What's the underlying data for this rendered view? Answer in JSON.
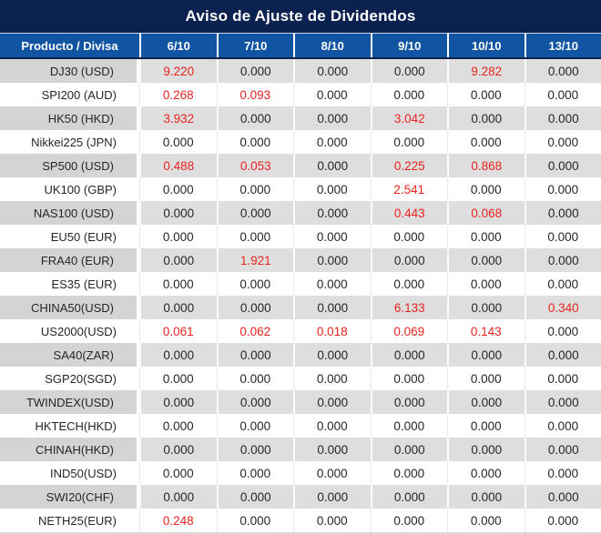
{
  "title": "Aviso de Ajuste de Dividendos",
  "columns": [
    "Producto / Divisa",
    "6/10",
    "7/10",
    "8/10",
    "9/10",
    "10/10",
    "13/10"
  ],
  "value_highlight_rule": "non-zero dividend adjustments are shown in red",
  "colors": {
    "title_bg": "#0b2150",
    "header_bg": "#1054a2",
    "value_red": "#e8241f",
    "row_alt_product_bg": "#d4d4d4",
    "row_alt_data_bg": "#dedede",
    "body_text": "#262626"
  },
  "rows": [
    {
      "product": "DJ30 (USD)",
      "values": [
        "9.220",
        "0.000",
        "0.000",
        "0.000",
        "9.282",
        "0.000"
      ]
    },
    {
      "product": "SPI200 (AUD)",
      "values": [
        "0.268",
        "0.093",
        "0.000",
        "0.000",
        "0.000",
        "0.000"
      ]
    },
    {
      "product": "HK50 (HKD)",
      "values": [
        "3.932",
        "0.000",
        "0.000",
        "3.042",
        "0.000",
        "0.000"
      ]
    },
    {
      "product": "Nikkei225 (JPN)",
      "values": [
        "0.000",
        "0.000",
        "0.000",
        "0.000",
        "0.000",
        "0.000"
      ]
    },
    {
      "product": "SP500 (USD)",
      "values": [
        "0.488",
        "0.053",
        "0.000",
        "0.225",
        "0.868",
        "0.000"
      ]
    },
    {
      "product": "UK100 (GBP)",
      "values": [
        "0.000",
        "0.000",
        "0.000",
        "2.541",
        "0.000",
        "0.000"
      ]
    },
    {
      "product": "NAS100 (USD)",
      "values": [
        "0.000",
        "0.000",
        "0.000",
        "0.443",
        "0.068",
        "0.000"
      ]
    },
    {
      "product": "EU50 (EUR)",
      "values": [
        "0.000",
        "0.000",
        "0.000",
        "0.000",
        "0.000",
        "0.000"
      ]
    },
    {
      "product": "FRA40 (EUR)",
      "values": [
        "0.000",
        "1.921",
        "0.000",
        "0.000",
        "0.000",
        "0.000"
      ]
    },
    {
      "product": "ES35 (EUR)",
      "values": [
        "0.000",
        "0.000",
        "0.000",
        "0.000",
        "0.000",
        "0.000"
      ]
    },
    {
      "product": "CHINA50(USD)",
      "values": [
        "0.000",
        "0.000",
        "0.000",
        "6.133",
        "0.000",
        "0.340"
      ]
    },
    {
      "product": "US2000(USD)",
      "values": [
        "0.061",
        "0.062",
        "0.018",
        "0.069",
        "0.143",
        "0.000"
      ]
    },
    {
      "product": "SA40(ZAR)",
      "values": [
        "0.000",
        "0.000",
        "0.000",
        "0.000",
        "0.000",
        "0.000"
      ]
    },
    {
      "product": "SGP20(SGD)",
      "values": [
        "0.000",
        "0.000",
        "0.000",
        "0.000",
        "0.000",
        "0.000"
      ]
    },
    {
      "product": "TWINDEX(USD)",
      "values": [
        "0.000",
        "0.000",
        "0.000",
        "0.000",
        "0.000",
        "0.000"
      ]
    },
    {
      "product": "HKTECH(HKD)",
      "values": [
        "0.000",
        "0.000",
        "0.000",
        "0.000",
        "0.000",
        "0.000"
      ]
    },
    {
      "product": "CHINAH(HKD)",
      "values": [
        "0.000",
        "0.000",
        "0.000",
        "0.000",
        "0.000",
        "0.000"
      ]
    },
    {
      "product": "IND50(USD)",
      "values": [
        "0.000",
        "0.000",
        "0.000",
        "0.000",
        "0.000",
        "0.000"
      ]
    },
    {
      "product": "SWI20(CHF)",
      "values": [
        "0.000",
        "0.000",
        "0.000",
        "0.000",
        "0.000",
        "0.000"
      ]
    },
    {
      "product": "NETH25(EUR)",
      "values": [
        "0.248",
        "0.000",
        "0.000",
        "0.000",
        "0.000",
        "0.000"
      ]
    }
  ]
}
